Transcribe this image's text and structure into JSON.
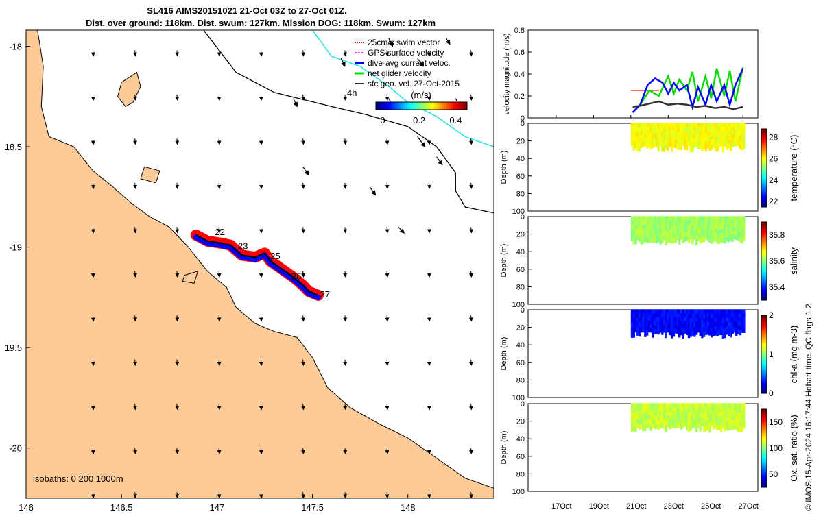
{
  "header": {
    "title_line1": "SL416 AIMS20151021 21-Oct 03Z to 27-Oct 01Z.",
    "title_line2": "Dist. over ground: 118km. Dist. swum: 127km. Mission DOG: 118km. Swum: 127km"
  },
  "credit": "© IMOS 15-Apr-2024 16:17:44 Hobart time. QC flags 1  2",
  "colors": {
    "land": "#fccb98",
    "sea": "#ffffff",
    "coast": "#000000",
    "isobath_200": "#000000",
    "isobath_1000": "#22e3e3",
    "swim": "#ff0000",
    "gps": "#ff33ff",
    "dive_avg": "#0000ff",
    "net": "#00dd00",
    "geo": "#333333"
  },
  "chart_data": [
    {
      "type": "map",
      "xlim": [
        146.0,
        148.45
      ],
      "ylim": [
        -20.25,
        -17.92
      ],
      "x_ticks": [
        146,
        146.5,
        147,
        147.5,
        148
      ],
      "x_tick_labels": [
        "146",
        "146.5",
        "147",
        "147.5",
        "148"
      ],
      "y_ticks": [
        -18,
        -18.5,
        -19,
        -19.5,
        -20
      ],
      "y_tick_labels": [
        "-18",
        "18.5",
        "-19",
        "19.5",
        "-20"
      ],
      "isobaths_label": "isobaths: 0   200  1000m",
      "legend": [
        "25cm/s swim vector",
        "GPS surface velocity",
        "dive-avg current veloc.",
        "net glider velocity",
        "sfc geo. vel. 27-Oct-2015"
      ],
      "colorbar": {
        "label": "(m/s)",
        "range": [
          0,
          0.5
        ],
        "ticks": [
          0,
          0.2,
          0.4
        ],
        "tick_labels": [
          "0",
          "0.2",
          "0.4"
        ]
      },
      "annotation_4h": "4h",
      "day_labels": [
        {
          "label": "22",
          "lon": 146.99,
          "lat": -18.94
        },
        {
          "label": "23",
          "lon": 147.11,
          "lat": -19.01
        },
        {
          "label": "25",
          "lon": 147.28,
          "lat": -19.06
        },
        {
          "label": "26",
          "lon": 147.39,
          "lat": -19.16
        },
        {
          "label": "27",
          "lon": 147.54,
          "lat": -19.25
        }
      ],
      "track": [
        [
          146.89,
          -18.94
        ],
        [
          146.95,
          -18.97
        ],
        [
          147.02,
          -18.98
        ],
        [
          147.07,
          -18.99
        ],
        [
          147.13,
          -19.04
        ],
        [
          147.2,
          -19.05
        ],
        [
          147.25,
          -19.03
        ],
        [
          147.28,
          -19.07
        ],
        [
          147.34,
          -19.11
        ],
        [
          147.4,
          -19.15
        ],
        [
          147.45,
          -19.19
        ],
        [
          147.48,
          -19.22
        ],
        [
          147.53,
          -19.24
        ]
      ],
      "coast": [
        [
          146.0,
          -17.92
        ],
        [
          146.06,
          -17.92
        ],
        [
          146.09,
          -18.1
        ],
        [
          146.08,
          -18.3
        ],
        [
          146.12,
          -18.45
        ],
        [
          146.25,
          -18.5
        ],
        [
          146.35,
          -18.62
        ],
        [
          146.43,
          -18.68
        ],
        [
          146.55,
          -18.78
        ],
        [
          146.65,
          -18.85
        ],
        [
          146.75,
          -18.9
        ],
        [
          146.85,
          -19.0
        ],
        [
          146.95,
          -19.12
        ],
        [
          147.05,
          -19.2
        ],
        [
          147.1,
          -19.3
        ],
        [
          147.2,
          -19.38
        ],
        [
          147.3,
          -19.42
        ],
        [
          147.42,
          -19.45
        ],
        [
          147.5,
          -19.55
        ],
        [
          147.58,
          -19.7
        ],
        [
          147.7,
          -19.8
        ],
        [
          147.85,
          -19.88
        ],
        [
          148.0,
          -19.95
        ],
        [
          148.15,
          -20.05
        ],
        [
          148.3,
          -20.15
        ],
        [
          148.45,
          -20.2
        ],
        [
          148.45,
          -20.25
        ],
        [
          146.0,
          -20.25
        ]
      ],
      "islands": [
        [
          [
            146.5,
            -18.18
          ],
          [
            146.58,
            -18.13
          ],
          [
            146.6,
            -18.2
          ],
          [
            146.56,
            -18.28
          ],
          [
            146.52,
            -18.3
          ],
          [
            146.48,
            -18.25
          ]
        ],
        [
          [
            146.62,
            -18.6
          ],
          [
            146.7,
            -18.62
          ],
          [
            146.68,
            -18.68
          ],
          [
            146.6,
            -18.66
          ]
        ],
        [
          [
            146.83,
            -19.14
          ],
          [
            146.9,
            -19.12
          ],
          [
            146.88,
            -19.18
          ],
          [
            146.82,
            -19.17
          ]
        ]
      ],
      "isobath_200": [
        [
          146.93,
          -17.92
        ],
        [
          147.1,
          -18.13
        ],
        [
          147.3,
          -18.23
        ],
        [
          147.6,
          -18.3
        ],
        [
          147.78,
          -18.34
        ],
        [
          148.0,
          -18.4
        ],
        [
          148.15,
          -18.5
        ],
        [
          148.25,
          -18.63
        ],
        [
          148.25,
          -18.72
        ],
        [
          148.3,
          -18.8
        ],
        [
          148.45,
          -18.83
        ]
      ],
      "isobath_1000": [
        [
          147.5,
          -17.92
        ],
        [
          147.6,
          -18.05
        ],
        [
          147.75,
          -18.1
        ],
        [
          147.9,
          -18.2
        ],
        [
          148.0,
          -18.28
        ],
        [
          148.15,
          -18.35
        ],
        [
          148.3,
          -18.45
        ],
        [
          148.45,
          -18.5
        ]
      ],
      "geo_arrows": [
        [
          147.9,
          -17.96,
          0.02,
          -0.04
        ],
        [
          148.2,
          -17.96,
          0.02,
          -0.03
        ],
        [
          147.65,
          -18.06,
          0.02,
          -0.04
        ],
        [
          148.05,
          -18.06,
          0.03,
          -0.04
        ],
        [
          147.4,
          -18.26,
          0.02,
          -0.04
        ],
        [
          147.9,
          -18.26,
          0.02,
          -0.04
        ],
        [
          148.25,
          -18.26,
          0.02,
          -0.04
        ],
        [
          147.45,
          -18.6,
          0.03,
          -0.04
        ],
        [
          147.8,
          -18.7,
          0.03,
          -0.04
        ],
        [
          147.95,
          -18.9,
          0.03,
          -0.03
        ],
        [
          148.05,
          -18.45,
          0.04,
          -0.05
        ],
        [
          148.15,
          -18.55,
          0.03,
          -0.04
        ]
      ],
      "vector_field": {
        "lon_start": 146.35,
        "lon_step": 0.22,
        "lat_start": -18.02,
        "lat_step": -0.22,
        "cols": 10,
        "rows": 11,
        "dx": 0.003,
        "dy": -0.028
      }
    },
    {
      "type": "line",
      "ylabel": "velocity magnitude (m/s)",
      "ylim": [
        0,
        0.8
      ],
      "y_ticks": [
        0,
        0.2,
        0.4,
        0.6,
        0.8
      ],
      "x_range_days": [
        15.5,
        27.8
      ],
      "x_ticks": [
        17,
        19,
        21,
        23,
        25,
        27
      ],
      "x_tick_labels": [
        "17Oct",
        "19Oct",
        "21Oct",
        "23Oct",
        "25Oct",
        "27Oct"
      ],
      "series": [
        {
          "color": "#ff6666",
          "x": [
            21.0,
            21.5,
            22.0,
            22.5
          ],
          "y": [
            0.25,
            0.25,
            0.25,
            0.25
          ]
        },
        {
          "color": "#00dd00",
          "x": [
            21.1,
            21.5,
            22.0,
            22.5,
            23.0,
            23.3,
            23.6,
            24.0,
            24.3,
            24.6,
            25.0,
            25.3,
            25.6,
            26.0,
            26.3,
            26.6,
            27.0
          ],
          "y": [
            0.05,
            0.12,
            0.25,
            0.2,
            0.38,
            0.22,
            0.35,
            0.25,
            0.42,
            0.15,
            0.38,
            0.18,
            0.45,
            0.2,
            0.43,
            0.15,
            0.46
          ]
        },
        {
          "color": "#0000ff",
          "x": [
            21.1,
            21.5,
            21.9,
            22.3,
            22.7,
            23.0,
            23.3,
            23.6,
            24.0,
            24.3,
            24.6,
            25.0,
            25.3,
            25.6,
            26.0,
            26.3,
            26.6,
            27.0
          ],
          "y": [
            0.05,
            0.12,
            0.3,
            0.36,
            0.32,
            0.22,
            0.32,
            0.25,
            0.3,
            0.1,
            0.28,
            0.12,
            0.3,
            0.15,
            0.3,
            0.12,
            0.3,
            0.45
          ]
        },
        {
          "color": "#333333",
          "x": [
            21.1,
            21.5,
            22.0,
            22.5,
            23.0,
            23.5,
            24.0,
            24.5,
            25.0,
            25.5,
            26.0,
            26.5,
            27.0
          ],
          "y": [
            0.1,
            0.11,
            0.13,
            0.15,
            0.12,
            0.13,
            0.12,
            0.1,
            0.11,
            0.09,
            0.1,
            0.08,
            0.1
          ]
        }
      ]
    },
    {
      "type": "heatmap",
      "ylabel": "Depth (m)",
      "cblabel": "temperature (°C)",
      "ylim": [
        100,
        0
      ],
      "y_ticks": [
        0,
        20,
        40,
        60,
        80,
        100
      ],
      "x_range_days": [
        15.5,
        27.8
      ],
      "data_x_range": [
        21.0,
        27.1
      ],
      "data_depth_range": [
        1,
        26
      ],
      "clim": [
        21.5,
        28.8
      ],
      "cb_ticks": [
        22,
        24,
        26,
        28
      ],
      "cb_tick_labels": [
        "22",
        "24",
        "26",
        "28"
      ],
      "base_value": 26.0
    },
    {
      "type": "heatmap",
      "ylabel": "Depth (m)",
      "cblabel": "salinity",
      "ylim": [
        100,
        0
      ],
      "y_ticks": [
        0,
        20,
        40,
        60,
        80,
        100
      ],
      "x_range_days": [
        15.5,
        27.8
      ],
      "data_x_range": [
        21.0,
        27.1
      ],
      "data_depth_range": [
        1,
        26
      ],
      "clim": [
        35.3,
        35.9
      ],
      "cb_ticks": [
        35.4,
        35.6,
        35.8
      ],
      "cb_tick_labels": [
        "35.4",
        "35.6",
        "35.8"
      ],
      "base_value": 35.62
    },
    {
      "type": "heatmap",
      "ylabel": "Depth (m)",
      "cblabel": "chl-a (mg m-3)",
      "ylim": [
        100,
        0
      ],
      "y_ticks": [
        0,
        20,
        40,
        60,
        80,
        100
      ],
      "x_range_days": [
        15.5,
        27.8
      ],
      "data_x_range": [
        21.0,
        27.1
      ],
      "data_depth_range": [
        1,
        26
      ],
      "clim": [
        0,
        2
      ],
      "cb_ticks": [
        0,
        1,
        2
      ],
      "cb_tick_labels": [
        "0",
        "1",
        "2"
      ],
      "base_value": 0.25
    },
    {
      "type": "heatmap",
      "ylabel": "Depth (m)",
      "cblabel": "Ox. sat. ratio (%)",
      "ylim": [
        100,
        0
      ],
      "y_ticks": [
        0,
        20,
        40,
        60,
        80,
        100
      ],
      "x_range_days": [
        15.5,
        27.8
      ],
      "data_x_range": [
        21.0,
        27.1
      ],
      "data_depth_range": [
        1,
        26
      ],
      "clim": [
        25,
        175
      ],
      "cb_ticks": [
        50,
        100,
        150
      ],
      "cb_tick_labels": [
        "50",
        "100",
        "150"
      ],
      "base_value": 110
    }
  ]
}
